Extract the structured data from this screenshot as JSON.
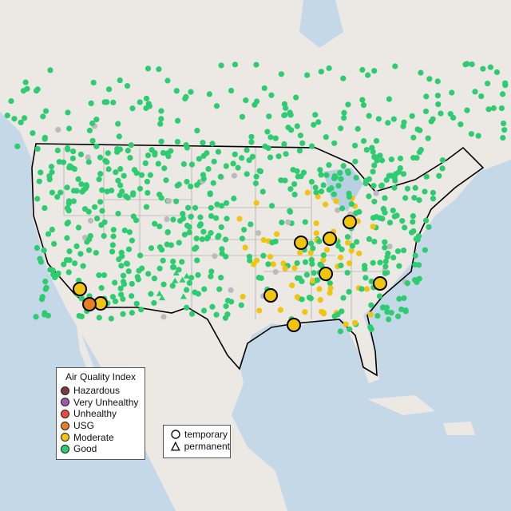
{
  "legend": {
    "title": "Air Quality Index",
    "categories": [
      {
        "label": "Hazardous",
        "color": "#7e3b3b"
      },
      {
        "label": "Very Unhealthy",
        "color": "#9b59b6"
      },
      {
        "label": "Unhealthy",
        "color": "#e74c3c"
      },
      {
        "label": "USG",
        "color": "#e67e22"
      },
      {
        "label": "Moderate",
        "color": "#f1c40f"
      },
      {
        "label": "Good",
        "color": "#2ecc71"
      }
    ],
    "types": [
      {
        "label": "temporary",
        "icon": "circle-icon"
      },
      {
        "label": "permanent",
        "icon": "triangle-icon"
      }
    ]
  },
  "colors": {
    "ocean": "#c5d8e8",
    "land": "#ece8e3",
    "border": "#000000",
    "state_lines": "#9a9a9a",
    "no_data": "#bbbbbb"
  }
}
